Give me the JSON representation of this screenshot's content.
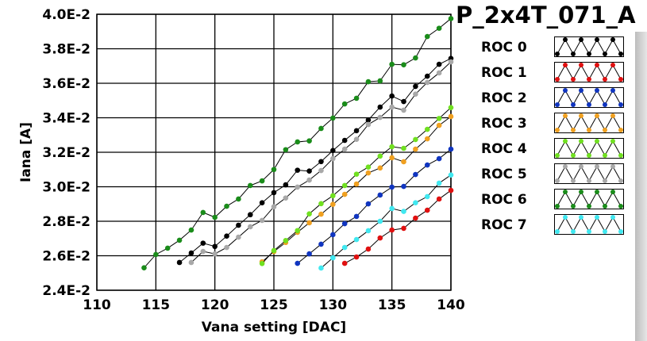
{
  "title": "P_2x4T_071_A",
  "chart_data": {
    "type": "line",
    "title": "P_2x4T_071_A",
    "xlabel": "Vana setting [DAC]",
    "ylabel": "Iana [A]",
    "xlim": [
      110,
      140
    ],
    "ylim": [
      0.024,
      0.04
    ],
    "xticks": [
      110,
      115,
      120,
      125,
      130,
      135,
      140
    ],
    "xtick_labels": [
      "110",
      "115",
      "120",
      "125",
      "130",
      "135",
      "140"
    ],
    "yticks": [
      0.024,
      0.026,
      0.028,
      0.03,
      0.032,
      0.034,
      0.036,
      0.038,
      0.04
    ],
    "ytick_labels": [
      "2.4E-2",
      "2.6E-2",
      "2.8E-2",
      "3.0E-2",
      "3.2E-2",
      "3.4E-2",
      "3.6E-2",
      "3.8E-2",
      "4.0E-2"
    ],
    "grid": true,
    "legend_position": "right",
    "series": [
      {
        "name": "ROC 0",
        "color": "#000000",
        "x": [
          117,
          118,
          119,
          120,
          121,
          122,
          123,
          124,
          125,
          126,
          127,
          128,
          129,
          130,
          131,
          132,
          133,
          134,
          135,
          136,
          137,
          138,
          139,
          140
        ],
        "y": [
          0.02561,
          0.02616,
          0.02673,
          0.02654,
          0.02714,
          0.02777,
          0.02838,
          0.02907,
          0.02966,
          0.03011,
          0.03096,
          0.03091,
          0.03146,
          0.0321,
          0.03269,
          0.03325,
          0.03387,
          0.03462,
          0.03526,
          0.03494,
          0.03582,
          0.03641,
          0.0371,
          0.03744
        ]
      },
      {
        "name": "ROC 1",
        "color": "#e01010",
        "x": [
          131,
          132,
          133,
          134,
          135,
          136,
          137,
          138,
          139,
          140
        ],
        "y": [
          0.02556,
          0.02593,
          0.02639,
          0.02703,
          0.02749,
          0.02759,
          0.02818,
          0.02864,
          0.02929,
          0.02979
        ]
      },
      {
        "name": "ROC 2",
        "color": "#1035c0",
        "x": [
          127,
          128,
          129,
          130,
          131,
          132,
          133,
          134,
          135,
          136,
          137,
          138,
          139,
          140
        ],
        "y": [
          0.02556,
          0.02611,
          0.02667,
          0.02722,
          0.02786,
          0.02828,
          0.02901,
          0.02952,
          0.02998,
          0.03002,
          0.03071,
          0.03126,
          0.03163,
          0.03218
        ]
      },
      {
        "name": "ROC 3",
        "color": "#f0a020",
        "x": [
          124,
          125,
          126,
          127,
          128,
          129,
          130,
          131,
          132,
          133,
          134,
          135,
          136,
          137,
          138,
          139,
          140
        ],
        "y": [
          0.02565,
          0.02624,
          0.02677,
          0.02736,
          0.02791,
          0.02841,
          0.02898,
          0.02956,
          0.03016,
          0.0308,
          0.03109,
          0.03168,
          0.03145,
          0.03218,
          0.03278,
          0.03356,
          0.03407
        ]
      },
      {
        "name": "ROC 4",
        "color": "#70e020",
        "x": [
          124,
          125,
          126,
          127,
          128,
          129,
          130,
          131,
          132,
          133,
          134,
          135,
          136,
          137,
          138,
          139,
          140
        ],
        "y": [
          0.02555,
          0.0263,
          0.02688,
          0.02746,
          0.02843,
          0.02902,
          0.02948,
          0.03007,
          0.03073,
          0.03114,
          0.03178,
          0.03232,
          0.03223,
          0.03274,
          0.03333,
          0.03396,
          0.03459
        ]
      },
      {
        "name": "ROC 5",
        "color": "#a8a8a8",
        "x": [
          118,
          119,
          120,
          121,
          122,
          123,
          124,
          125,
          126,
          127,
          128,
          129,
          130,
          131,
          132,
          133,
          134,
          135,
          136,
          137,
          138,
          139,
          140
        ],
        "y": [
          0.02561,
          0.02625,
          0.02611,
          0.02648,
          0.02708,
          0.02768,
          0.02805,
          0.02884,
          0.02935,
          0.02998,
          0.03039,
          0.03094,
          0.03163,
          0.03218,
          0.03275,
          0.03361,
          0.03402,
          0.03462,
          0.03444,
          0.03537,
          0.03605,
          0.0366,
          0.03724
        ]
      },
      {
        "name": "ROC 6",
        "color": "#1a8c1a",
        "x": [
          114,
          115,
          116,
          117,
          118,
          119,
          120,
          121,
          122,
          123,
          124,
          125,
          126,
          127,
          128,
          129,
          130,
          131,
          132,
          133,
          134,
          135,
          136,
          137,
          138,
          139,
          140
        ],
        "y": [
          0.0253,
          0.02607,
          0.02644,
          0.0269,
          0.02749,
          0.02851,
          0.02823,
          0.02887,
          0.02929,
          0.03007,
          0.03034,
          0.031,
          0.03215,
          0.0326,
          0.03266,
          0.03338,
          0.03398,
          0.0348,
          0.03513,
          0.03609,
          0.03614,
          0.0371,
          0.03707,
          0.03747,
          0.03871,
          0.03919,
          0.03975
        ]
      },
      {
        "name": "ROC 7",
        "color": "#40e8f0",
        "x": [
          129,
          130,
          131,
          132,
          133,
          134,
          135,
          136,
          137,
          138,
          139,
          140
        ],
        "y": [
          0.02529,
          0.02588,
          0.02648,
          0.02694,
          0.02745,
          0.028,
          0.02874,
          0.02857,
          0.02907,
          0.02943,
          0.03021,
          0.03068
        ]
      }
    ]
  }
}
